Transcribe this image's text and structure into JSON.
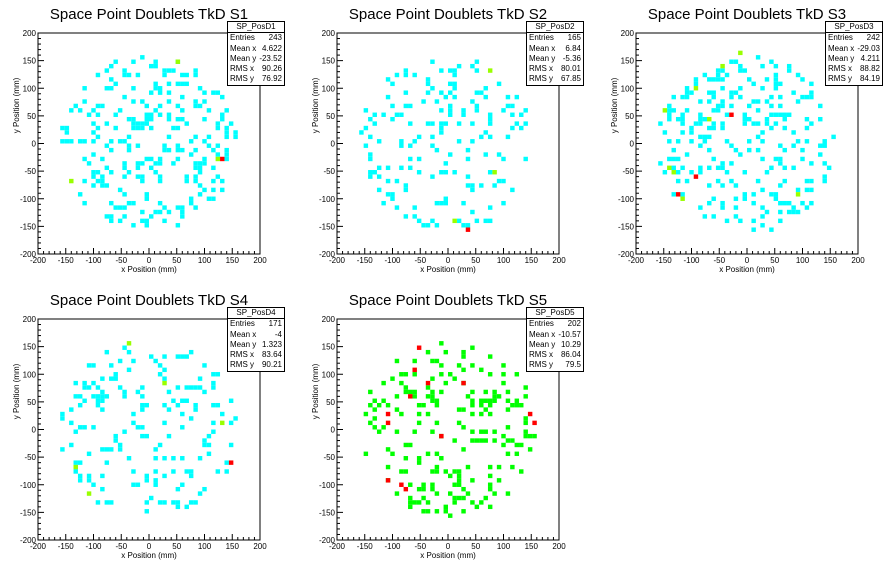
{
  "colors": {
    "low": "#00ffff",
    "mid": "#99ff00",
    "high": "#ff0000",
    "green": "#00ff00"
  },
  "chart_data": [
    {
      "type": "heatmap",
      "title": "Space Point Doublets TkD S1",
      "xlabel": "x Position (mm)",
      "ylabel": "y Position (mm)",
      "xlim": [
        -200,
        200
      ],
      "ylim": [
        -200,
        200
      ],
      "xticks": [
        -200,
        -150,
        -100,
        -50,
        0,
        50,
        100,
        150,
        200
      ],
      "yticks": [
        -200,
        -150,
        -100,
        -50,
        0,
        50,
        100,
        150,
        200
      ],
      "stats": {
        "name": "SP_PosD1",
        "rows": [
          [
            "Entries",
            "243"
          ],
          [
            "Mean x",
            "4.622"
          ],
          [
            "Mean y",
            "-23.52"
          ],
          [
            "RMS x",
            "90.26"
          ],
          [
            "RMS y",
            "76.92"
          ]
        ]
      },
      "seed": 11,
      "n": 243,
      "rx": 160,
      "ry": 158,
      "palette": "cyan",
      "special": [
        [
          130,
          -25,
          "high"
        ],
        [
          48,
          150,
          "mid"
        ],
        [
          120,
          -30,
          "mid"
        ],
        [
          -140,
          -70,
          "mid"
        ]
      ]
    },
    {
      "type": "heatmap",
      "title": "Space Point Doublets TkD S2",
      "xlabel": "x Position (mm)",
      "ylabel": "y Position (mm)",
      "xlim": [
        -200,
        200
      ],
      "ylim": [
        -200,
        200
      ],
      "xticks": [
        -200,
        -150,
        -100,
        -50,
        0,
        50,
        100,
        150,
        200
      ],
      "yticks": [
        -200,
        -150,
        -100,
        -50,
        0,
        50,
        100,
        150,
        200
      ],
      "stats": {
        "name": "SP_PosD2",
        "rows": [
          [
            "Entries",
            "165"
          ],
          [
            "Mean x",
            "6.84"
          ],
          [
            "Mean y",
            "-5.36"
          ],
          [
            "RMS x",
            "80.01"
          ],
          [
            "RMS y",
            "67.85"
          ]
        ]
      },
      "seed": 23,
      "n": 165,
      "rx": 160,
      "ry": 158,
      "palette": "cyan",
      "special": [
        [
          35,
          -155,
          "high"
        ],
        [
          75,
          130,
          "mid"
        ],
        [
          85,
          -50,
          "mid"
        ],
        [
          15,
          -140,
          "mid"
        ]
      ]
    },
    {
      "type": "heatmap",
      "title": "Space Point Doublets TkD S3",
      "xlabel": "x Position (mm)",
      "ylabel": "y Position (mm)",
      "xlim": [
        -200,
        200
      ],
      "ylim": [
        -200,
        200
      ],
      "xticks": [
        -200,
        -150,
        -100,
        -50,
        0,
        50,
        100,
        150,
        200
      ],
      "yticks": [
        -200,
        -150,
        -100,
        -50,
        0,
        50,
        100,
        150,
        200
      ],
      "stats": {
        "name": "SP_PosD3",
        "rows": [
          [
            "Entries",
            "242"
          ],
          [
            "Mean x",
            "-29.03"
          ],
          [
            "Mean y",
            "4.211"
          ],
          [
            "RMS x",
            "88.82"
          ],
          [
            "RMS y",
            "84.19"
          ]
        ]
      },
      "seed": 37,
      "n": 242,
      "rx": 160,
      "ry": 158,
      "palette": "cyan",
      "special": [
        [
          -90,
          -60,
          "high"
        ],
        [
          -125,
          -90,
          "high"
        ],
        [
          -25,
          50,
          "high"
        ],
        [
          -140,
          -45,
          "mid"
        ],
        [
          -135,
          -55,
          "mid"
        ],
        [
          -120,
          -100,
          "mid"
        ],
        [
          -90,
          100,
          "mid"
        ],
        [
          -150,
          60,
          "mid"
        ],
        [
          -70,
          40,
          "mid"
        ],
        [
          -15,
          160,
          "mid"
        ],
        [
          -45,
          140,
          "mid"
        ],
        [
          90,
          -90,
          "mid"
        ]
      ]
    },
    {
      "type": "heatmap",
      "title": "Space Point Doublets TkD S4",
      "xlabel": "x Position (mm)",
      "ylabel": "y Position (mm)",
      "xlim": [
        -200,
        200
      ],
      "ylim": [
        -200,
        200
      ],
      "xticks": [
        -200,
        -150,
        -100,
        -50,
        0,
        50,
        100,
        150,
        200
      ],
      "yticks": [
        -200,
        -150,
        -100,
        -50,
        0,
        50,
        100,
        150,
        200
      ],
      "stats": {
        "name": "SP_PosD4",
        "rows": [
          [
            "Entries",
            "171"
          ],
          [
            "Mean x",
            "-4"
          ],
          [
            "Mean y",
            "1.323"
          ],
          [
            "RMS x",
            "83.64"
          ],
          [
            "RMS y",
            "90.21"
          ]
        ]
      },
      "seed": 53,
      "n": 171,
      "rx": 160,
      "ry": 158,
      "palette": "cyan",
      "special": [
        [
          150,
          -60,
          "high"
        ],
        [
          -35,
          155,
          "mid"
        ],
        [
          -105,
          -120,
          "mid"
        ],
        [
          -135,
          -65,
          "mid"
        ],
        [
          130,
          15,
          "mid"
        ],
        [
          30,
          80,
          "mid"
        ]
      ]
    },
    {
      "type": "heatmap",
      "title": "Space Point Doublets TkD S5",
      "xlabel": "x Position (mm)",
      "ylabel": "y Position (mm)",
      "xlim": [
        -200,
        200
      ],
      "ylim": [
        -200,
        200
      ],
      "xticks": [
        -200,
        -150,
        -100,
        -50,
        0,
        50,
        100,
        150,
        200
      ],
      "yticks": [
        -200,
        -150,
        -100,
        -50,
        0,
        50,
        100,
        150,
        200
      ],
      "stats": {
        "name": "SP_PosD5",
        "rows": [
          [
            "Entries",
            "202"
          ],
          [
            "Mean x",
            "-10.57"
          ],
          [
            "Mean y",
            "10.29"
          ],
          [
            "RMS x",
            "86.04"
          ],
          [
            "RMS y",
            "79.5"
          ]
        ]
      },
      "seed": 71,
      "n": 202,
      "rx": 160,
      "ry": 158,
      "palette": "green",
      "special": [
        [
          -50,
          150,
          "high"
        ],
        [
          -60,
          105,
          "high"
        ],
        [
          -35,
          85,
          "high"
        ],
        [
          -65,
          60,
          "high"
        ],
        [
          -105,
          30,
          "high"
        ],
        [
          -110,
          15,
          "high"
        ],
        [
          -15,
          -10,
          "high"
        ],
        [
          -85,
          -100,
          "high"
        ],
        [
          -80,
          -110,
          "high"
        ],
        [
          -105,
          -90,
          "high"
        ],
        [
          25,
          80,
          "high"
        ],
        [
          150,
          30,
          "high"
        ],
        [
          155,
          15,
          "high"
        ]
      ]
    }
  ]
}
